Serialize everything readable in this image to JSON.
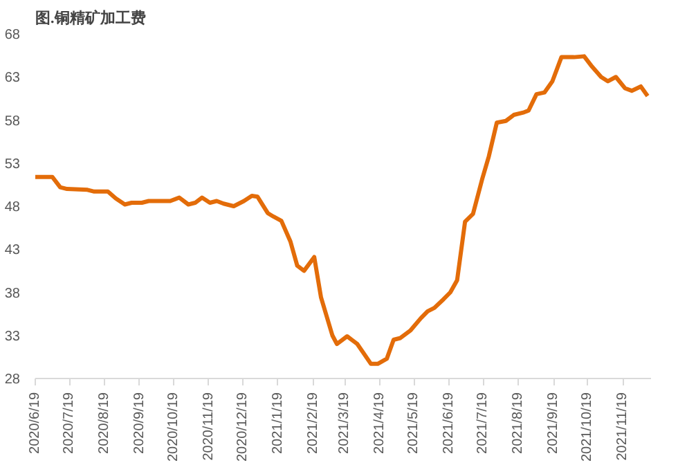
{
  "chart_data": {
    "type": "line",
    "title": "图.铜精矿加工费",
    "x": [
      "2020-06-19",
      "2020-07-04",
      "2020-07-11",
      "2020-07-17",
      "2020-08-04",
      "2020-08-10",
      "2020-08-22",
      "2020-08-29",
      "2020-09-06",
      "2020-09-12",
      "2020-09-21",
      "2020-09-27",
      "2020-10-16",
      "2020-10-24",
      "2020-11-01",
      "2020-11-07",
      "2020-11-13",
      "2020-11-20",
      "2020-11-26",
      "2020-12-02",
      "2020-12-11",
      "2020-12-20",
      "2020-12-27",
      "2021-01-01",
      "2021-01-10",
      "2021-01-15",
      "2021-01-22",
      "2021-01-30",
      "2021-02-05",
      "2021-02-11",
      "2021-02-20",
      "2021-02-26",
      "2021-03-08",
      "2021-03-12",
      "2021-03-21",
      "2021-03-30",
      "2021-04-11",
      "2021-04-17",
      "2021-04-25",
      "2021-05-01",
      "2021-05-07",
      "2021-05-16",
      "2021-05-25",
      "2021-05-31",
      "2021-06-06",
      "2021-06-14",
      "2021-06-20",
      "2021-06-26",
      "2021-07-03",
      "2021-07-10",
      "2021-07-18",
      "2021-07-24",
      "2021-07-31",
      "2021-08-08",
      "2021-08-15",
      "2021-08-24",
      "2021-08-28",
      "2021-09-04",
      "2021-09-11",
      "2021-09-18",
      "2021-09-26",
      "2021-10-07",
      "2021-10-16",
      "2021-10-23",
      "2021-10-31",
      "2021-11-06",
      "2021-11-13",
      "2021-11-21",
      "2021-11-27",
      "2021-12-05",
      "2021-12-11"
    ],
    "series": [
      {
        "color": "#e36c09",
        "values": [
          51.4,
          51.4,
          50.2,
          50.0,
          49.9,
          49.7,
          49.7,
          48.9,
          48.2,
          48.4,
          48.4,
          48.6,
          48.6,
          49.0,
          48.2,
          48.4,
          49.0,
          48.4,
          48.6,
          48.3,
          48.0,
          48.6,
          49.2,
          49.1,
          47.2,
          46.8,
          46.3,
          43.9,
          41.1,
          40.5,
          42.1,
          37.4,
          33.0,
          32.0,
          32.9,
          32.0,
          29.7,
          29.7,
          30.3,
          32.5,
          32.7,
          33.6,
          35.0,
          35.8,
          36.2,
          37.2,
          38.0,
          39.4,
          46.2,
          47.1,
          51.1,
          53.8,
          57.7,
          57.9,
          58.6,
          58.9,
          59.1,
          61.0,
          61.2,
          62.5,
          65.3,
          65.3,
          65.4,
          64.2,
          63.0,
          62.5,
          63.0,
          61.7,
          61.4,
          61.9,
          60.8
        ]
      }
    ],
    "xlim": [
      "2020-06-19",
      "2021-12-14"
    ],
    "xticks": [
      {
        "value": "2020-06-19",
        "label": "2020/6/19"
      },
      {
        "value": "2020-07-19",
        "label": "2020/7/19"
      },
      {
        "value": "2020-08-19",
        "label": "2020/8/19"
      },
      {
        "value": "2020-09-19",
        "label": "2020/9/19"
      },
      {
        "value": "2020-10-19",
        "label": "2020/10/19"
      },
      {
        "value": "2020-11-19",
        "label": "2020/11/19"
      },
      {
        "value": "2020-12-19",
        "label": "2020/12/19"
      },
      {
        "value": "2021-01-19",
        "label": "2021/1/19"
      },
      {
        "value": "2021-02-19",
        "label": "2021/2/19"
      },
      {
        "value": "2021-03-19",
        "label": "2021/3/19"
      },
      {
        "value": "2021-04-19",
        "label": "2021/4/19"
      },
      {
        "value": "2021-05-19",
        "label": "2021/5/19"
      },
      {
        "value": "2021-06-19",
        "label": "2021/6/19"
      },
      {
        "value": "2021-07-19",
        "label": "2021/7/19"
      },
      {
        "value": "2021-08-19",
        "label": "2021/8/19"
      },
      {
        "value": "2021-09-19",
        "label": "2021/9/19"
      },
      {
        "value": "2021-10-19",
        "label": "2021/10/19"
      },
      {
        "value": "2021-11-19",
        "label": "2021/11/19"
      }
    ],
    "ylim": [
      28,
      68
    ],
    "yticks": [
      28,
      33,
      38,
      43,
      48,
      53,
      58,
      63,
      68
    ],
    "grid": false,
    "marker": "none",
    "line_style": "solid"
  }
}
